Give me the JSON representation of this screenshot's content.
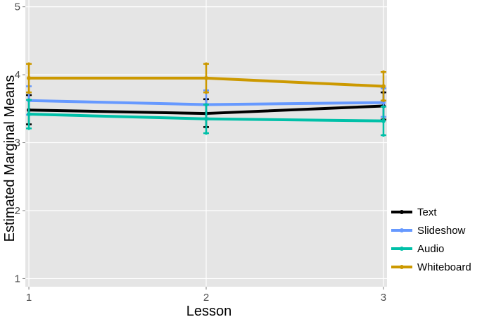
{
  "chart_data": {
    "type": "line",
    "xlabel": "Lesson",
    "ylabel": "Estimated Marginal Means",
    "x": [
      1,
      2,
      3
    ],
    "xticks": [
      1,
      2,
      3
    ],
    "yticks": [
      1,
      2,
      3,
      4,
      5
    ],
    "xlim": [
      0.98,
      3.02
    ],
    "ylim": [
      0.88,
      5.1
    ],
    "grid": true,
    "legend_placement": "right",
    "series": [
      {
        "name": "Text",
        "color": "#000000",
        "values": [
          3.48,
          3.43,
          3.54
        ],
        "lower": [
          3.27,
          3.23,
          3.34
        ],
        "upper": [
          3.7,
          3.64,
          3.74
        ]
      },
      {
        "name": "Slideshow",
        "color": "#6699ff",
        "values": [
          3.62,
          3.56,
          3.59
        ],
        "lower": [
          3.41,
          3.36,
          3.38
        ],
        "upper": [
          3.83,
          3.77,
          3.8
        ]
      },
      {
        "name": "Audio",
        "color": "#00c0a8",
        "values": [
          3.42,
          3.35,
          3.32
        ],
        "lower": [
          3.21,
          3.14,
          3.11
        ],
        "upper": [
          3.63,
          3.56,
          3.53
        ]
      },
      {
        "name": "Whiteboard",
        "color": "#cc9900",
        "values": [
          3.95,
          3.95,
          3.83
        ],
        "lower": [
          3.74,
          3.74,
          3.62
        ],
        "upper": [
          4.16,
          4.16,
          4.04
        ]
      }
    ]
  }
}
